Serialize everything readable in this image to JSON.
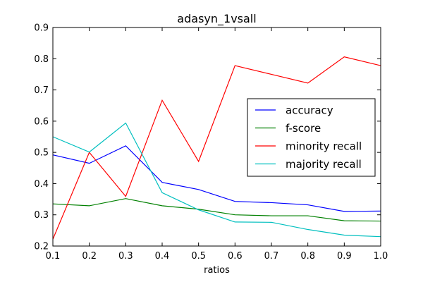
{
  "chart_data": {
    "type": "line",
    "title": "adasyn_1vsall",
    "xlabel": "ratios",
    "ylabel": "",
    "x": [
      0.1,
      0.2,
      0.3,
      0.4,
      0.5,
      0.6,
      0.7,
      0.8,
      0.9,
      1.0
    ],
    "xlim": [
      0.1,
      1.0
    ],
    "ylim": [
      0.2,
      0.9
    ],
    "x_ticks": [
      "0.1",
      "0.2",
      "0.3",
      "0.4",
      "0.5",
      "0.6",
      "0.7",
      "0.8",
      "0.9",
      "1.0"
    ],
    "y_ticks": [
      "0.2",
      "0.3",
      "0.4",
      "0.5",
      "0.6",
      "0.7",
      "0.8",
      "0.9"
    ],
    "grid": false,
    "legend_position": "right",
    "series": [
      {
        "name": "accuracy",
        "color": "#0000ff",
        "values": [
          0.492,
          0.465,
          0.521,
          0.404,
          0.381,
          0.343,
          0.339,
          0.332,
          0.311,
          0.312
        ]
      },
      {
        "name": "f-score",
        "color": "#008000",
        "values": [
          0.335,
          0.329,
          0.352,
          0.329,
          0.318,
          0.3,
          0.297,
          0.297,
          0.281,
          0.28
        ]
      },
      {
        "name": "minority recall",
        "color": "#ff0000",
        "values": [
          0.222,
          0.5,
          0.359,
          0.667,
          0.471,
          0.778,
          0.75,
          0.722,
          0.806,
          0.778
        ]
      },
      {
        "name": "majority recall",
        "color": "#00bfbf",
        "values": [
          0.55,
          0.501,
          0.594,
          0.371,
          0.316,
          0.277,
          0.276,
          0.253,
          0.235,
          0.23
        ]
      }
    ]
  }
}
